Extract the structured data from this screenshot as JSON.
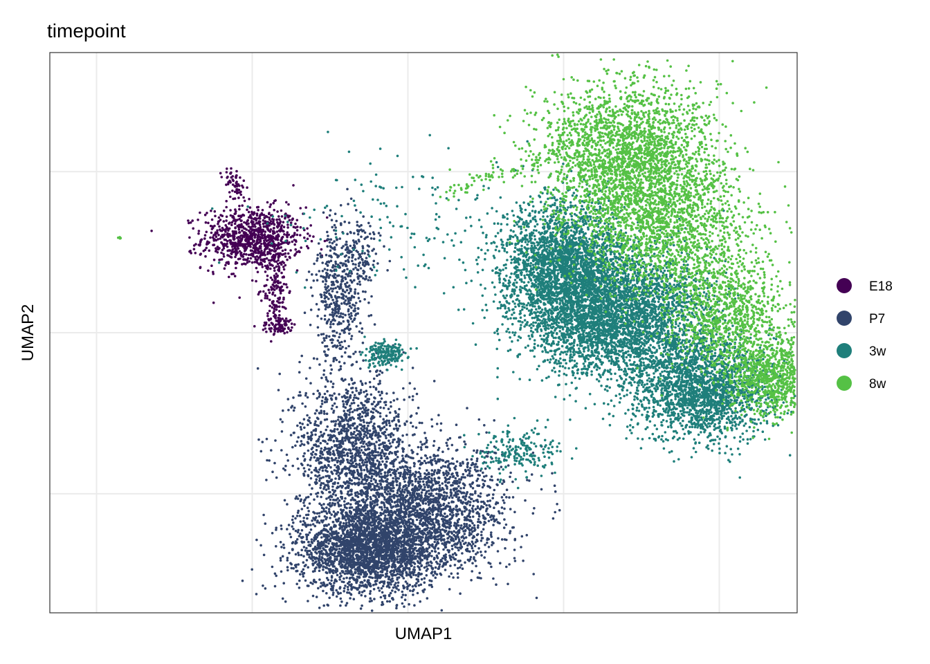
{
  "chart_data": {
    "type": "scatter",
    "title": "timepoint",
    "xlabel": "UMAP1",
    "ylabel": "UMAP2",
    "x_ticks_shown": false,
    "y_ticks_shown": false,
    "xlim": [
      -0.6,
      9.0
    ],
    "ylim": [
      -4.0,
      4.0
    ],
    "grid": true,
    "legend_position": "right",
    "series": [
      {
        "name": "E18",
        "color": "#440154",
        "clusters": [
          {
            "cx": 2.0,
            "cy": 1.35,
            "sx": 0.32,
            "sy": 0.22,
            "n": 900
          },
          {
            "cx": 2.3,
            "cy": 0.65,
            "sx": 0.08,
            "sy": 0.35,
            "n": 180
          },
          {
            "cx": 2.35,
            "cy": 0.1,
            "sx": 0.12,
            "sy": 0.06,
            "n": 70
          }
        ],
        "segments": [
          {
            "x1": 1.7,
            "y1": 2.3,
            "x2": 1.85,
            "y2": 1.95,
            "n": 60
          }
        ]
      },
      {
        "name": "P7",
        "color": "#31446b",
        "clusters": [
          {
            "cx": 3.5,
            "cy": -3.1,
            "sx": 0.45,
            "sy": 0.3,
            "n": 2600
          },
          {
            "cx": 3.3,
            "cy": -1.7,
            "sx": 0.38,
            "sy": 0.55,
            "n": 1500
          },
          {
            "cx": 4.3,
            "cy": -2.5,
            "sx": 0.5,
            "sy": 0.45,
            "n": 1800
          },
          {
            "cx": 3.1,
            "cy": 0.55,
            "sx": 0.15,
            "sy": 0.55,
            "n": 450
          },
          {
            "cx": 3.4,
            "cy": 1.0,
            "sx": 0.12,
            "sy": 0.3,
            "n": 150
          }
        ],
        "segments": []
      },
      {
        "name": "3w",
        "color": "#1f7f7b",
        "clusters": [
          {
            "cx": 6.0,
            "cy": 1.0,
            "sx": 0.4,
            "sy": 0.45,
            "n": 2200
          },
          {
            "cx": 6.3,
            "cy": 0.3,
            "sx": 0.45,
            "sy": 0.45,
            "n": 1800
          },
          {
            "cx": 7.0,
            "cy": 0.2,
            "sx": 0.5,
            "sy": 0.5,
            "n": 2000
          },
          {
            "cx": 7.8,
            "cy": -0.8,
            "sx": 0.45,
            "sy": 0.35,
            "n": 2000
          },
          {
            "cx": 3.7,
            "cy": -0.3,
            "sx": 0.12,
            "sy": 0.09,
            "n": 200
          },
          {
            "cx": 5.4,
            "cy": -1.7,
            "sx": 0.3,
            "sy": 0.18,
            "n": 200
          },
          {
            "cx": 4.0,
            "cy": 1.6,
            "sx": 0.9,
            "sy": 0.5,
            "n": 150
          }
        ],
        "segments": []
      },
      {
        "name": "8w",
        "color": "#55c145",
        "clusters": [
          {
            "cx": 6.8,
            "cy": 2.5,
            "sx": 0.55,
            "sy": 0.55,
            "n": 2400
          },
          {
            "cx": 7.3,
            "cy": 1.5,
            "sx": 0.55,
            "sy": 0.5,
            "n": 1500
          },
          {
            "cx": 8.1,
            "cy": 0.3,
            "sx": 0.4,
            "sy": 0.45,
            "n": 1000
          },
          {
            "cx": 8.7,
            "cy": -0.6,
            "sx": 0.3,
            "sy": 0.3,
            "n": 900
          },
          {
            "cx": 0.3,
            "cy": 1.35,
            "sx": 0.015,
            "sy": 0.015,
            "n": 6
          }
        ],
        "segments": [
          {
            "x1": 4.5,
            "y1": 2.0,
            "x2": 6.0,
            "y2": 2.6,
            "n": 80
          }
        ]
      }
    ]
  }
}
